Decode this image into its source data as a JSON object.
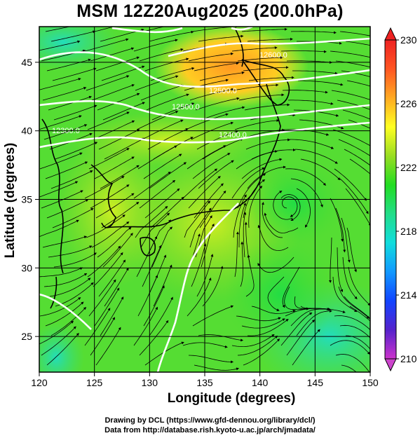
{
  "title": "MSM 12Z20Aug2025 (200.0hPa)",
  "x_axis": {
    "label": "Longitude (degrees)",
    "ticks": [
      "120",
      "125",
      "130",
      "135",
      "140",
      "145",
      "150"
    ],
    "range": [
      120,
      150
    ]
  },
  "y_axis": {
    "label": "Latitude  (degrees)",
    "ticks": [
      "25",
      "30",
      "35",
      "40",
      "45"
    ],
    "range": [
      22.4,
      47.6
    ]
  },
  "colorbar": {
    "ticks": [
      "230",
      "226",
      "222",
      "218",
      "214",
      "210"
    ],
    "range": [
      210,
      230
    ],
    "colors": [
      "#cc33cc",
      "#5522cc",
      "#1144ff",
      "#1199ff",
      "#11dddd",
      "#22dd88",
      "#22dd22",
      "#99dd22",
      "#ffff22",
      "#ffaa22",
      "#ff5522",
      "#ee2222"
    ]
  },
  "contour_labels": [
    "12600.0",
    "12500.0",
    "12500.0",
    "12400.0",
    "12300.0"
  ],
  "credits": {
    "line1": "Drawing by DCL (https://www.gfd-dennou.org/library/dcl/)",
    "line2": "Data from http://database.rish.kyoto-u.ac.jp/arch/jmadata/"
  }
}
